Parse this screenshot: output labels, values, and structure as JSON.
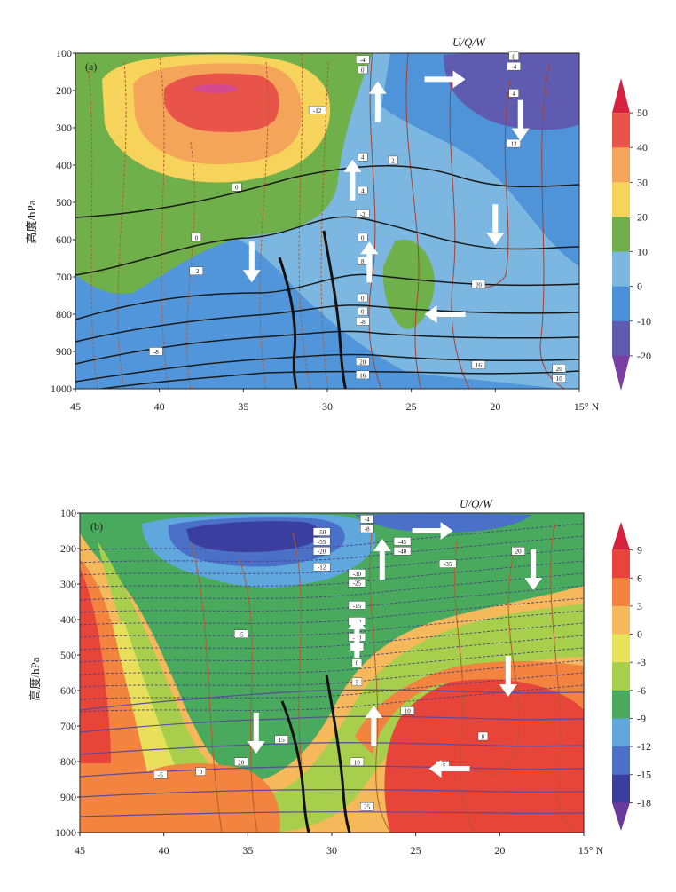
{
  "chart_data": [
    {
      "type": "heatmap",
      "panel_label": "(a)",
      "annotation": "U/Q/W",
      "ylabel": "高度/hPa",
      "y_ticks": [
        "100",
        "200",
        "300",
        "400",
        "500",
        "600",
        "700",
        "800",
        "900",
        "1000"
      ],
      "x_ticks": [
        "45",
        "40",
        "35",
        "30",
        "25",
        "20",
        "15° N"
      ],
      "colorbar_ticks": [
        "50",
        "40",
        "30",
        "20",
        "10",
        "0",
        "-10",
        "-20"
      ],
      "colorbar_levels": [
        -30,
        -20,
        -10,
        0,
        10,
        20,
        30,
        40,
        50,
        60
      ],
      "colorbar_colors": [
        "#7a3fa0",
        "#5f5bb0",
        "#4a90d8",
        "#7bb7e0",
        "#6fb04a",
        "#f6d35a",
        "#f5a55a",
        "#e8534a",
        "#d4223f"
      ],
      "regions": [
        {
          "value": 55,
          "points": [
            [
              37,
              200
            ]
          ]
        },
        {
          "value": 10,
          "points": [
            [
              44,
              150
            ],
            [
              42,
              210
            ],
            [
              40,
              430
            ],
            [
              38,
              560
            ],
            [
              33,
              600
            ],
            [
              30,
              280
            ],
            [
              26,
              130
            ]
          ]
        },
        {
          "value": 10,
          "points": [
            [
              25,
              640
            ],
            [
              23,
              720
            ],
            [
              24.5,
              800
            ]
          ]
        },
        {
          "value": -15,
          "points": [
            [
              19,
              100
            ],
            [
              16,
              130
            ]
          ]
        }
      ],
      "contour_labels": [
        "-4",
        "0",
        "-12",
        "4",
        "0",
        "2",
        "4",
        "-2",
        "0",
        "0",
        "-2",
        "8",
        "-8",
        "0",
        "0",
        "20",
        "16",
        "-8",
        "16",
        "20",
        "10",
        "20",
        "12",
        "-4",
        "0",
        "4"
      ],
      "arrows": [
        {
          "x": 23,
          "p": 170,
          "dir": "right"
        },
        {
          "x": 27,
          "p": 230,
          "dir": "up"
        },
        {
          "x": 28.5,
          "p": 440,
          "dir": "up"
        },
        {
          "x": 27.5,
          "p": 660,
          "dir": "up"
        },
        {
          "x": 34.5,
          "p": 660,
          "dir": "down"
        },
        {
          "x": 18.5,
          "p": 280,
          "dir": "down"
        },
        {
          "x": 20,
          "p": 560,
          "dir": "down"
        },
        {
          "x": 23,
          "p": 800,
          "dir": "left"
        }
      ]
    },
    {
      "type": "heatmap",
      "panel_label": "(b)",
      "annotation": "U/Q/W",
      "ylabel": "高度/hPa",
      "y_ticks": [
        "100",
        "200",
        "300",
        "400",
        "500",
        "600",
        "700",
        "800",
        "900",
        "1000"
      ],
      "x_ticks": [
        "45",
        "40",
        "35",
        "30",
        "25",
        "20",
        "15° N"
      ],
      "colorbar_ticks": [
        "9",
        "6",
        "3",
        "0",
        "-3",
        "-6",
        "-9",
        "-12",
        "-15",
        "-18"
      ],
      "colorbar_levels": [
        -21,
        -18,
        -15,
        -12,
        -9,
        -6,
        -3,
        0,
        3,
        6,
        9,
        12
      ],
      "colorbar_colors": [
        "#6a3a9a",
        "#3a3f9f",
        "#4a70c8",
        "#5fa7dc",
        "#49a95c",
        "#a7cf4b",
        "#e8e35a",
        "#f5b85a",
        "#f2843f",
        "#e8453a",
        "#d4223f"
      ],
      "contour_labels": [
        "-4",
        "-8",
        "-50",
        "-55",
        "-20",
        "-45",
        "-40",
        "-35",
        "-12",
        "-30",
        "-25",
        "-15",
        "-20",
        "-10",
        "-5",
        "-5",
        "0",
        "5",
        "10",
        "15",
        "20",
        "-5",
        "0",
        "8",
        "10",
        "15",
        "25",
        "20"
      ],
      "arrows": [
        {
          "x": 24,
          "p": 150,
          "dir": "right"
        },
        {
          "x": 27,
          "p": 230,
          "dir": "up"
        },
        {
          "x": 28.5,
          "p": 450,
          "dir": "up"
        },
        {
          "x": 27.5,
          "p": 700,
          "dir": "up"
        },
        {
          "x": 34.5,
          "p": 720,
          "dir": "down"
        },
        {
          "x": 18,
          "p": 260,
          "dir": "down"
        },
        {
          "x": 19.5,
          "p": 560,
          "dir": "down"
        },
        {
          "x": 23,
          "p": 820,
          "dir": "left"
        }
      ]
    }
  ]
}
